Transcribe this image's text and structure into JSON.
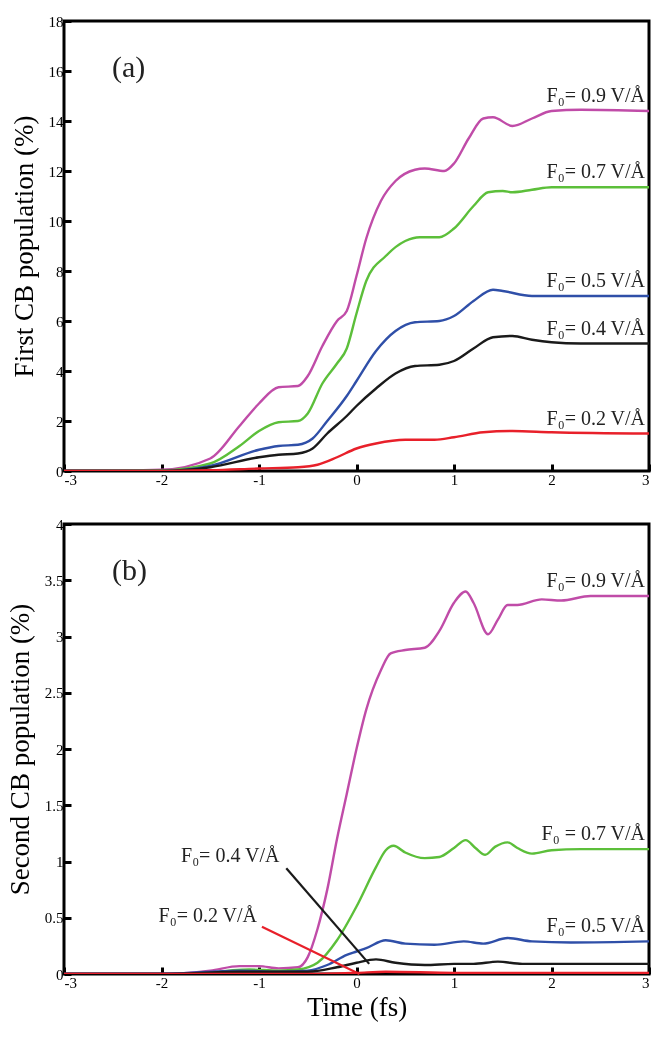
{
  "chart_data": [
    {
      "type": "line",
      "title": "(a)",
      "ylabel": "First CB population (%)",
      "xlim": [
        -3,
        3
      ],
      "xticks": [
        -3,
        -2,
        -1,
        0,
        1,
        2,
        3
      ],
      "ylim": [
        0,
        18
      ],
      "yticks": [
        0,
        2,
        4,
        6,
        8,
        10,
        12,
        14,
        16,
        18
      ],
      "grid": false,
      "legend": false,
      "series": [
        {
          "name": "F₀= 0.9 V/Å",
          "color": "#c04ca8",
          "x": [
            -3,
            -2,
            -1.5,
            -1.2,
            -1,
            -0.8,
            -0.6,
            -0.5,
            -0.35,
            -0.2,
            -0.1,
            0,
            0.1,
            0.25,
            0.4,
            0.6,
            0.7,
            0.9,
            1.0,
            1.15,
            1.3,
            1.4,
            1.6,
            1.8,
            2.0,
            2.3,
            3
          ],
          "values": [
            0,
            0.05,
            0.5,
            1.8,
            2.7,
            3.35,
            3.4,
            3.8,
            5.0,
            6.0,
            6.4,
            7.8,
            9.3,
            10.8,
            11.6,
            12.05,
            12.1,
            12.0,
            12.3,
            13.3,
            14.1,
            14.15,
            13.8,
            14.1,
            14.4,
            14.45,
            14.4
          ]
        },
        {
          "name": "F₀= 0.7 V/Å",
          "color": "#5cbf3a",
          "x": [
            -3,
            -2,
            -1.5,
            -1.2,
            -1,
            -0.8,
            -0.6,
            -0.5,
            -0.35,
            -0.2,
            -0.1,
            0,
            0.1,
            0.3,
            0.5,
            0.65,
            0.85,
            1.0,
            1.2,
            1.35,
            1.5,
            1.6,
            1.8,
            2.0,
            3
          ],
          "values": [
            0,
            0.02,
            0.3,
            1.0,
            1.6,
            1.95,
            2.0,
            2.3,
            3.5,
            4.3,
            4.9,
            6.3,
            7.6,
            8.6,
            9.2,
            9.35,
            9.35,
            9.7,
            10.6,
            11.15,
            11.2,
            11.15,
            11.25,
            11.35,
            11.35
          ]
        },
        {
          "name": "F₀= 0.5 V/Å",
          "color": "#2f4fa8",
          "x": [
            -3,
            -2,
            -1.5,
            -1,
            -0.8,
            -0.6,
            -0.45,
            -0.3,
            -0.1,
            0,
            0.2,
            0.4,
            0.6,
            0.85,
            1.0,
            1.2,
            1.4,
            1.5,
            1.8,
            2,
            3
          ],
          "values": [
            0,
            0,
            0.2,
            0.85,
            1.0,
            1.05,
            1.3,
            2.0,
            3.0,
            3.6,
            4.8,
            5.6,
            5.95,
            6.0,
            6.2,
            6.8,
            7.25,
            7.2,
            7.0,
            7.0,
            7.0
          ]
        },
        {
          "name": "F₀= 0.4 V/Å",
          "color": "#1a1a1a",
          "x": [
            -3,
            -2,
            -1.5,
            -1,
            -0.8,
            -0.6,
            -0.45,
            -0.3,
            -0.1,
            0,
            0.2,
            0.4,
            0.6,
            0.85,
            1.0,
            1.2,
            1.4,
            1.6,
            1.8,
            2.0,
            2.3,
            3
          ],
          "values": [
            0,
            0,
            0.15,
            0.55,
            0.65,
            0.7,
            0.9,
            1.5,
            2.2,
            2.6,
            3.3,
            3.9,
            4.2,
            4.25,
            4.4,
            4.9,
            5.35,
            5.4,
            5.25,
            5.15,
            5.1,
            5.1
          ]
        },
        {
          "name": "F₀= 0.2 V/Å",
          "color": "#e8202a",
          "x": [
            -3,
            -2,
            -1.5,
            -1,
            -0.6,
            -0.4,
            -0.2,
            0,
            0.2,
            0.5,
            0.8,
            1.0,
            1.3,
            1.6,
            2,
            3
          ],
          "values": [
            0,
            0,
            0.03,
            0.1,
            0.15,
            0.25,
            0.55,
            0.9,
            1.1,
            1.25,
            1.25,
            1.35,
            1.55,
            1.6,
            1.55,
            1.5
          ]
        }
      ]
    },
    {
      "type": "line",
      "title": "(b)",
      "xlabel": "Time (fs)",
      "ylabel": "Second CB population (%)",
      "xlim": [
        -3,
        3
      ],
      "xticks": [
        -3,
        -2,
        -1,
        0,
        1,
        2,
        3
      ],
      "ylim": [
        0,
        4
      ],
      "yticks": [
        0,
        0.5,
        1,
        1.5,
        2,
        2.5,
        3,
        3.5,
        4
      ],
      "grid": false,
      "legend": false,
      "series": [
        {
          "name": "F₀= 0.9 V/Å",
          "color": "#c04ca8",
          "x": [
            -3,
            -2,
            -1.5,
            -1.2,
            -1,
            -0.8,
            -0.6,
            -0.5,
            -0.4,
            -0.3,
            -0.2,
            -0.1,
            0,
            0.1,
            0.25,
            0.35,
            0.5,
            0.7,
            0.85,
            1.0,
            1.12,
            1.2,
            1.35,
            1.45,
            1.55,
            1.65,
            1.9,
            2.1,
            2.4,
            3
          ],
          "values": [
            0,
            0,
            0.03,
            0.07,
            0.07,
            0.05,
            0.06,
            0.15,
            0.4,
            0.75,
            1.2,
            1.6,
            2.0,
            2.35,
            2.7,
            2.85,
            2.88,
            2.9,
            3.05,
            3.3,
            3.4,
            3.3,
            3.02,
            3.15,
            3.28,
            3.28,
            3.33,
            3.32,
            3.36,
            3.36
          ]
        },
        {
          "name": "F₀ = 0.7 V/Å",
          "color": "#5cbf3a",
          "x": [
            -1.5,
            -1.1,
            -0.8,
            -0.6,
            -0.4,
            -0.2,
            0,
            0.2,
            0.3,
            0.38,
            0.5,
            0.7,
            0.85,
            1.0,
            1.12,
            1.22,
            1.32,
            1.42,
            1.55,
            1.65,
            1.8,
            2.0,
            2.3,
            3
          ],
          "values": [
            0.01,
            0.04,
            0.03,
            0.04,
            0.1,
            0.3,
            0.6,
            0.95,
            1.1,
            1.14,
            1.08,
            1.03,
            1.04,
            1.12,
            1.19,
            1.12,
            1.06,
            1.13,
            1.17,
            1.12,
            1.07,
            1.1,
            1.11,
            1.11
          ]
        },
        {
          "name": "F₀= 0.5 V/Å",
          "color": "#2f4fa8",
          "x": [
            -3,
            -2,
            -1.2,
            -0.8,
            -0.5,
            -0.3,
            -0.1,
            0,
            0.1,
            0.3,
            0.5,
            0.8,
            1.1,
            1.3,
            1.55,
            1.8,
            2.2,
            3
          ],
          "values": [
            0,
            0,
            0.03,
            0.02,
            0.03,
            0.08,
            0.17,
            0.2,
            0.23,
            0.3,
            0.27,
            0.26,
            0.29,
            0.27,
            0.32,
            0.29,
            0.28,
            0.29
          ]
        },
        {
          "name": "F₀= 0.4 V/Å",
          "color": "#1a1a1a",
          "x": [
            -3,
            -2,
            -1.2,
            -0.5,
            -0.2,
            0,
            0.2,
            0.4,
            0.7,
            1.0,
            1.2,
            1.45,
            1.7,
            2,
            3
          ],
          "values": [
            0,
            0,
            0.02,
            0.02,
            0.06,
            0.1,
            0.13,
            0.1,
            0.08,
            0.09,
            0.09,
            0.11,
            0.09,
            0.09,
            0.09
          ]
        },
        {
          "name": "F₀= 0.2 V/Å",
          "color": "#e8202a",
          "x": [
            -3,
            -2,
            -0.5,
            0,
            0.3,
            1,
            3
          ],
          "values": [
            0,
            0,
            0,
            0.01,
            0.02,
            0.01,
            0.01
          ]
        }
      ]
    }
  ]
}
